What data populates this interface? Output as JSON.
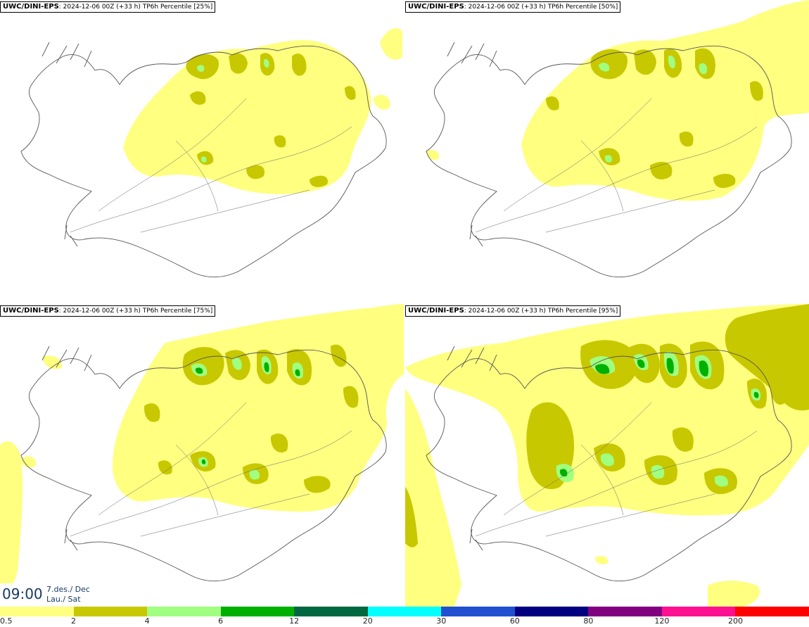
{
  "panels": [
    {
      "model": "UWC/DINI-EPS",
      "run": ": 2024-12-06 00Z (+33 h)",
      "product": " TP6h Percentile [25%]"
    },
    {
      "model": "UWC/DINI-EPS",
      "run": ": 2024-12-06 00Z (+33 h)",
      "product": " TP6h Percentile [50%]"
    },
    {
      "model": "UWC/DINI-EPS",
      "run": ": 2024-12-06 00Z (+33 h)",
      "product": " TP6h Percentile [75%]"
    },
    {
      "model": "UWC/DINI-EPS",
      "run": ": 2024-12-06 00Z (+33 h)",
      "product": " TP6h Percentile [95%]"
    }
  ],
  "valid_time": {
    "time": "09:00",
    "date_line1": "7.des./ Dec",
    "date_line2": "Lau./ Sat"
  },
  "legend": {
    "colors": [
      "#ffff80",
      "#c8c800",
      "#a0ff80",
      "#00b000",
      "#006840",
      "#00ffff",
      "#2050d0",
      "#000080",
      "#800080",
      "#ff1090",
      "#ff0000"
    ],
    "tick_labels": [
      "0.5",
      "2",
      "4",
      "6",
      "12",
      "20",
      "30",
      "60",
      "80",
      "120",
      "200"
    ]
  }
}
